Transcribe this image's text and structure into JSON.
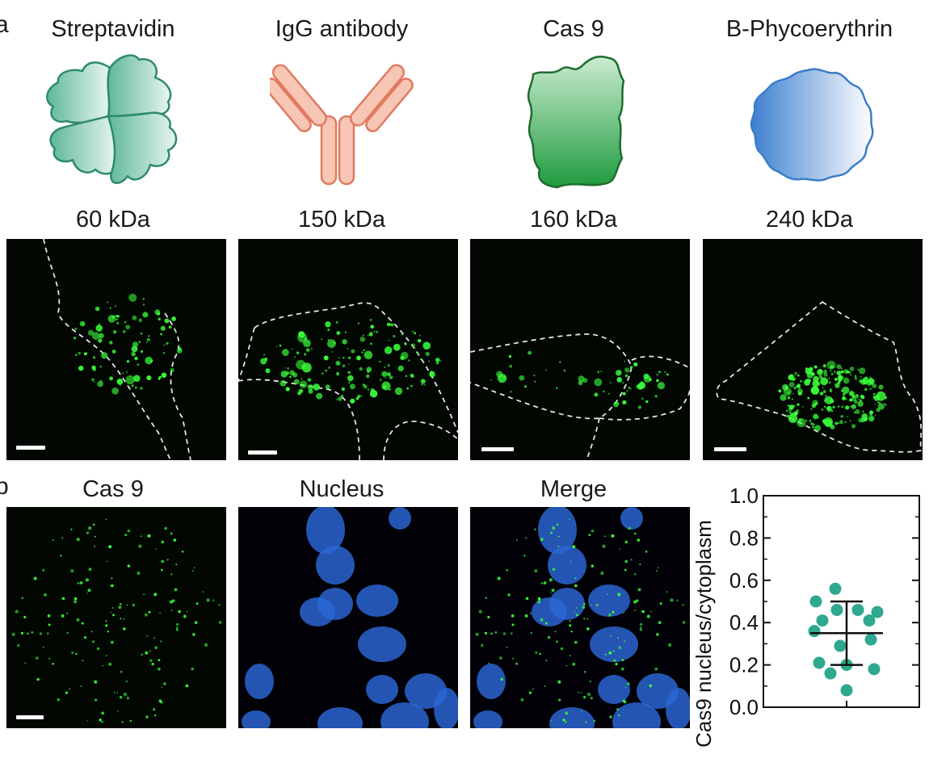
{
  "panel_a": {
    "letter": "a",
    "proteins": [
      {
        "name": "Streptavidin",
        "mass": "60 kDa",
        "icon": "streptavidin-tetramer-icon",
        "color": "#2e8b6a"
      },
      {
        "name": "IgG antibody",
        "mass": "150 kDa",
        "icon": "igg-antibody-icon",
        "color": "#e07a5f"
      },
      {
        "name": "Cas 9",
        "mass": "160 kDa",
        "icon": "cas9-protein-icon",
        "color": "#1f7a35"
      },
      {
        "name": "B-Phycoerythrin",
        "mass": "240 kDa",
        "icon": "b-phycoerythrin-icon",
        "color": "#3a7dc9"
      }
    ]
  },
  "panel_b": {
    "letter": "b",
    "channels": [
      "Cas 9",
      "Nucleus",
      "Merge"
    ]
  },
  "chart_data": {
    "type": "scatter",
    "ylabel": "Cas9 nucleus/cytoplasm",
    "ylim": [
      0.0,
      1.0
    ],
    "yticks": [
      "0.0",
      "0.2",
      "0.4",
      "0.6",
      "0.8",
      "1.0"
    ],
    "points": [
      0.56,
      0.5,
      0.46,
      0.46,
      0.45,
      0.41,
      0.41,
      0.36,
      0.32,
      0.29,
      0.21,
      0.2,
      0.18,
      0.16,
      0.08
    ],
    "mean": 0.35,
    "error_upper": 0.5,
    "error_lower": 0.2,
    "point_color": "#2ea88f",
    "grid": false
  }
}
